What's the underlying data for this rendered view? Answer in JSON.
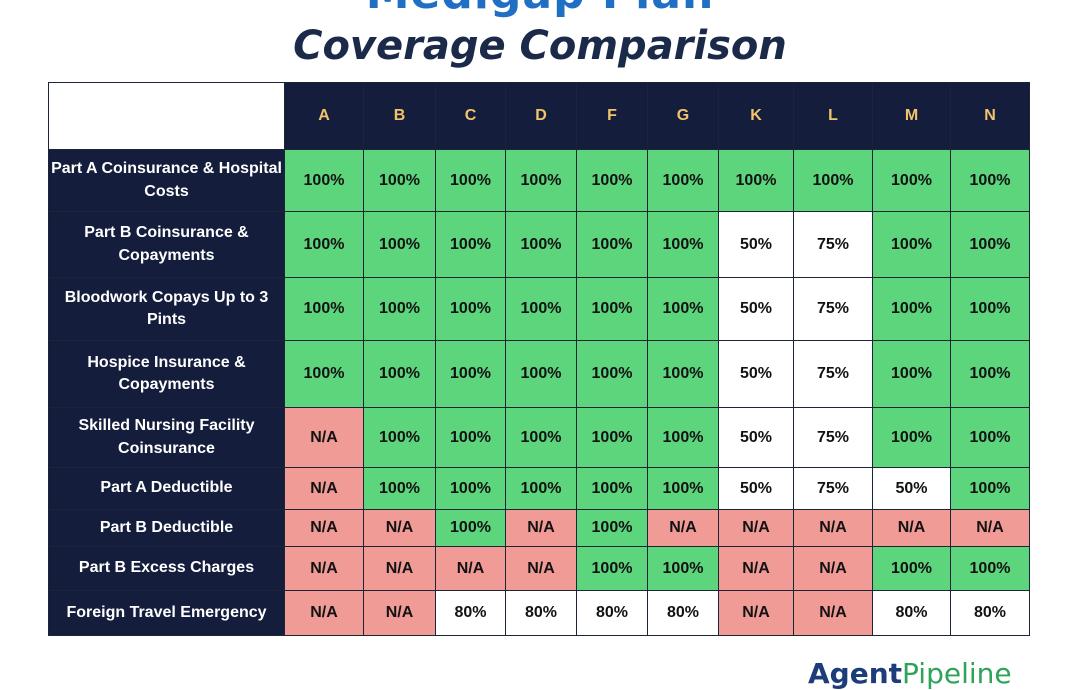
{
  "title": "Medigap Plan",
  "subtitle": "Coverage Comparison",
  "brand": {
    "part1": "Agent",
    "part2": "Pipeline"
  },
  "colors": {
    "full": "#5cd57d",
    "partial": "#ffffff",
    "none": "#f19b97",
    "header": "#141d3b",
    "plan_letters": "#f3c36b"
  },
  "chart_data": {
    "type": "table",
    "title": "Medigap Plan Coverage Comparison",
    "columns": [
      "A",
      "B",
      "C",
      "D",
      "F",
      "G",
      "K",
      "L",
      "M",
      "N"
    ],
    "rows": [
      {
        "label": "Part A Coinsurance & Hospital Costs",
        "values": [
          "100%",
          "100%",
          "100%",
          "100%",
          "100%",
          "100%",
          "100%",
          "100%",
          "100%",
          "100%"
        ]
      },
      {
        "label": "Part B Coinsurance & Copayments",
        "values": [
          "100%",
          "100%",
          "100%",
          "100%",
          "100%",
          "100%",
          "50%",
          "75%",
          "100%",
          "100%"
        ]
      },
      {
        "label": "Bloodwork Copays Up to 3 Pints",
        "values": [
          "100%",
          "100%",
          "100%",
          "100%",
          "100%",
          "100%",
          "50%",
          "75%",
          "100%",
          "100%"
        ]
      },
      {
        "label": "Hospice Insurance & Copayments",
        "values": [
          "100%",
          "100%",
          "100%",
          "100%",
          "100%",
          "100%",
          "50%",
          "75%",
          "100%",
          "100%"
        ]
      },
      {
        "label": "Skilled Nursing Facility Coinsurance",
        "values": [
          "N/A",
          "100%",
          "100%",
          "100%",
          "100%",
          "100%",
          "50%",
          "75%",
          "100%",
          "100%"
        ]
      },
      {
        "label": "Part A Deductible",
        "values": [
          "N/A",
          "100%",
          "100%",
          "100%",
          "100%",
          "100%",
          "50%",
          "75%",
          "50%",
          "100%"
        ]
      },
      {
        "label": "Part B Deductible",
        "values": [
          "N/A",
          "N/A",
          "100%",
          "N/A",
          "100%",
          "N/A",
          "N/A",
          "N/A",
          "N/A",
          "N/A"
        ]
      },
      {
        "label": "Part B Excess Charges",
        "values": [
          "N/A",
          "N/A",
          "N/A",
          "N/A",
          "100%",
          "100%",
          "N/A",
          "N/A",
          "100%",
          "100%"
        ]
      },
      {
        "label": "Foreign Travel Emergency",
        "values": [
          "N/A",
          "N/A",
          "80%",
          "80%",
          "80%",
          "80%",
          "N/A",
          "N/A",
          "80%",
          "80%"
        ]
      }
    ]
  }
}
